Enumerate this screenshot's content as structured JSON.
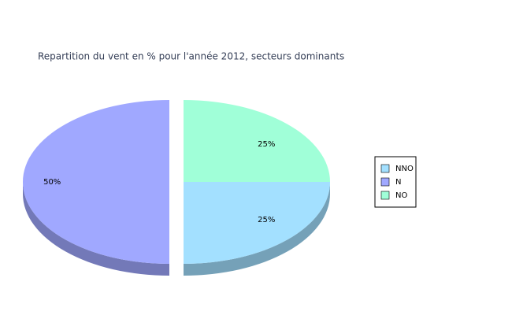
{
  "chart_data": {
    "type": "pie",
    "title": "Repartition du vent en % pour l'année 2012, secteurs dominants",
    "categories": [
      "NNO",
      "N",
      "NO"
    ],
    "values": [
      25,
      50,
      25
    ],
    "value_labels": [
      "25%",
      "50%",
      "25%"
    ],
    "colors": [
      "#a3e0ff",
      "#a0a8ff",
      "#a0ffd8"
    ],
    "legend": "right"
  }
}
